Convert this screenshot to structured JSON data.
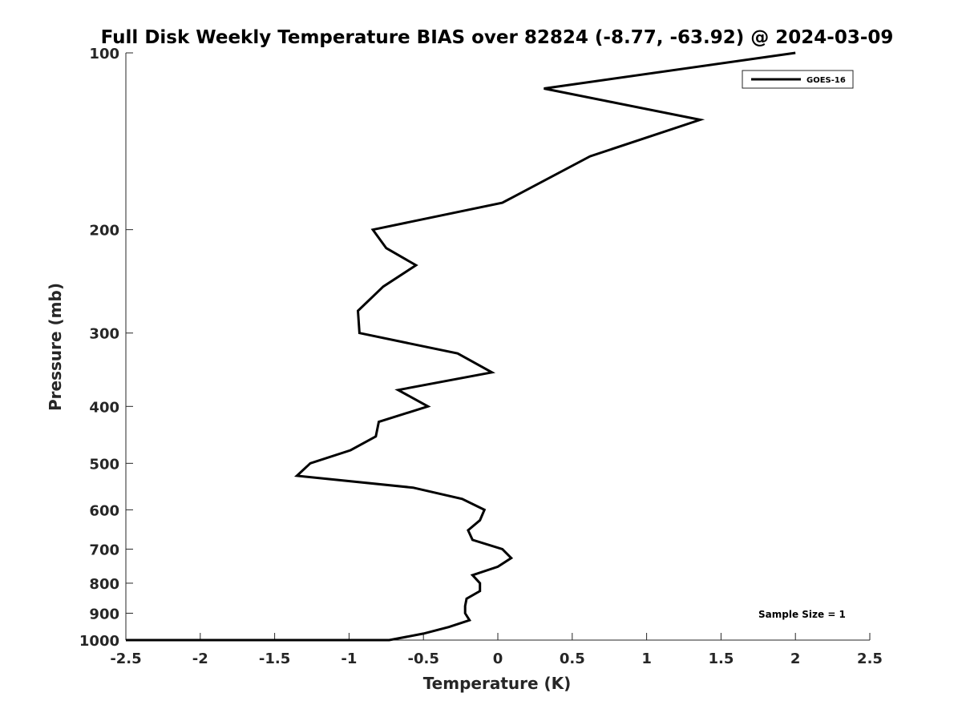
{
  "chart_data": {
    "type": "line",
    "title": "Full Disk Weekly Temperature BIAS over 82824 (-8.77, -63.92) @ 2024-03-09",
    "xlabel": "Temperature (K)",
    "ylabel": "Pressure (mb)",
    "xlim": [
      -2.5,
      2.5
    ],
    "ylim": [
      100,
      1000
    ],
    "y_scale": "log",
    "y_reversed": true,
    "x_ticks": [
      -2.5,
      -2,
      -1.5,
      -1,
      -0.5,
      0,
      0.5,
      1,
      1.5,
      2,
      2.5
    ],
    "x_tick_labels": [
      "-2.5",
      "-2",
      "-1.5",
      "-1",
      "-0.5",
      "0",
      "0.5",
      "1",
      "1.5",
      "2",
      "2.5"
    ],
    "y_ticks": [
      100,
      200,
      300,
      400,
      500,
      600,
      700,
      800,
      900,
      1000
    ],
    "y_tick_labels": [
      "100",
      "200",
      "300",
      "400",
      "500",
      "600",
      "700",
      "800",
      "900",
      "1000"
    ],
    "grid": false,
    "legend_position": "top-right",
    "color": "#000000",
    "series": [
      {
        "name": "GOES-16",
        "points": [
          {
            "x": 2.0,
            "p": 100
          },
          {
            "x": 0.31,
            "p": 115
          },
          {
            "x": 1.36,
            "p": 130
          },
          {
            "x": 0.62,
            "p": 150
          },
          {
            "x": 0.03,
            "p": 180
          },
          {
            "x": -0.84,
            "p": 200
          },
          {
            "x": -0.75,
            "p": 215
          },
          {
            "x": -0.55,
            "p": 230
          },
          {
            "x": -0.77,
            "p": 250
          },
          {
            "x": -0.94,
            "p": 275
          },
          {
            "x": -0.93,
            "p": 300
          },
          {
            "x": -0.27,
            "p": 325
          },
          {
            "x": -0.04,
            "p": 350
          },
          {
            "x": -0.67,
            "p": 375
          },
          {
            "x": -0.47,
            "p": 400
          },
          {
            "x": -0.8,
            "p": 425
          },
          {
            "x": -0.82,
            "p": 450
          },
          {
            "x": -0.99,
            "p": 475
          },
          {
            "x": -1.26,
            "p": 500
          },
          {
            "x": -1.35,
            "p": 525
          },
          {
            "x": -0.57,
            "p": 550
          },
          {
            "x": -0.24,
            "p": 575
          },
          {
            "x": -0.09,
            "p": 600
          },
          {
            "x": -0.12,
            "p": 625
          },
          {
            "x": -0.2,
            "p": 650
          },
          {
            "x": -0.17,
            "p": 675
          },
          {
            "x": 0.03,
            "p": 700
          },
          {
            "x": 0.09,
            "p": 725
          },
          {
            "x": 0.0,
            "p": 750
          },
          {
            "x": -0.17,
            "p": 775
          },
          {
            "x": -0.12,
            "p": 800
          },
          {
            "x": -0.12,
            "p": 825
          },
          {
            "x": -0.21,
            "p": 850
          },
          {
            "x": -0.22,
            "p": 875
          },
          {
            "x": -0.22,
            "p": 900
          },
          {
            "x": -0.19,
            "p": 925
          },
          {
            "x": -0.33,
            "p": 950
          },
          {
            "x": -0.5,
            "p": 975
          },
          {
            "x": -0.73,
            "p": 1000
          },
          {
            "x": -1.13,
            "p": 1025
          },
          {
            "x": -1.4,
            "p": 1050
          },
          {
            "x": -1.65,
            "p": 1075
          },
          {
            "x": -2.0,
            "p": 1100
          },
          {
            "x": -2.5,
            "p": 1125
          }
        ]
      }
    ],
    "annotations": [
      "Sample Size = 1"
    ]
  }
}
